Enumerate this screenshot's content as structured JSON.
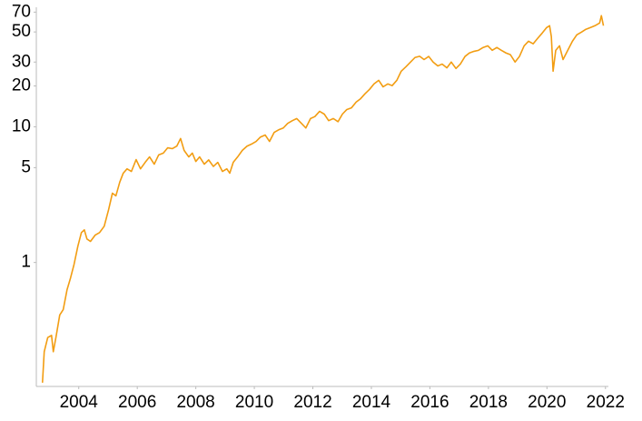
{
  "chart_data": {
    "type": "line",
    "log_scale_y": true,
    "grid": false,
    "xlim": [
      2002.55,
      2022.1
    ],
    "xticks": [
      2004,
      2006,
      2008,
      2010,
      2012,
      2014,
      2016,
      2018,
      2020,
      2022
    ],
    "ylim": [
      0.122,
      76
    ],
    "yticks": [
      1,
      5,
      10,
      20,
      30,
      50,
      70
    ],
    "series": [
      {
        "color": "#f29d12",
        "x": [
          2002.76,
          2002.82,
          2002.94,
          2003.07,
          2003.13,
          2003.22,
          2003.35,
          2003.47,
          2003.6,
          2003.72,
          2003.84,
          2003.97,
          2004.09,
          2004.19,
          2004.28,
          2004.4,
          2004.56,
          2004.71,
          2004.87,
          2005.02,
          2005.15,
          2005.27,
          2005.4,
          2005.52,
          2005.65,
          2005.8,
          2005.96,
          2006.11,
          2006.27,
          2006.42,
          2006.58,
          2006.73,
          2006.89,
          2007.04,
          2007.2,
          2007.35,
          2007.48,
          2007.6,
          2007.76,
          2007.88,
          2008.0,
          2008.13,
          2008.29,
          2008.44,
          2008.6,
          2008.75,
          2008.91,
          2009.06,
          2009.16,
          2009.28,
          2009.43,
          2009.59,
          2009.75,
          2009.9,
          2010.06,
          2010.21,
          2010.37,
          2010.52,
          2010.68,
          2010.83,
          2010.99,
          2011.14,
          2011.3,
          2011.45,
          2011.61,
          2011.76,
          2011.92,
          2012.07,
          2012.23,
          2012.39,
          2012.54,
          2012.7,
          2012.86,
          2013.01,
          2013.16,
          2013.32,
          2013.48,
          2013.63,
          2013.78,
          2013.94,
          2014.09,
          2014.25,
          2014.4,
          2014.56,
          2014.71,
          2014.87,
          2015.02,
          2015.18,
          2015.34,
          2015.49,
          2015.65,
          2015.8,
          2015.96,
          2016.11,
          2016.27,
          2016.42,
          2016.58,
          2016.73,
          2016.89,
          2017.04,
          2017.2,
          2017.35,
          2017.51,
          2017.66,
          2017.82,
          2017.98,
          2018.13,
          2018.29,
          2018.44,
          2018.6,
          2018.75,
          2018.91,
          2019.06,
          2019.22,
          2019.37,
          2019.53,
          2019.68,
          2019.84,
          2019.99,
          2020.09,
          2020.15,
          2020.21,
          2020.3,
          2020.43,
          2020.55,
          2020.71,
          2020.87,
          2021.02,
          2021.18,
          2021.33,
          2021.49,
          2021.64,
          2021.8,
          2021.86,
          2021.93
        ],
        "values": [
          0.13,
          0.22,
          0.28,
          0.29,
          0.22,
          0.28,
          0.41,
          0.45,
          0.63,
          0.77,
          0.97,
          1.32,
          1.66,
          1.74,
          1.49,
          1.43,
          1.59,
          1.66,
          1.85,
          2.45,
          3.24,
          3.1,
          3.9,
          4.55,
          4.9,
          4.69,
          5.73,
          4.9,
          5.47,
          6.0,
          5.3,
          6.2,
          6.4,
          7.0,
          6.9,
          7.2,
          8.2,
          6.7,
          6.0,
          6.4,
          5.55,
          6.0,
          5.3,
          5.7,
          5.1,
          5.47,
          4.69,
          4.9,
          4.55,
          5.47,
          6.0,
          6.7,
          7.2,
          7.45,
          7.8,
          8.4,
          8.7,
          7.8,
          9.1,
          9.5,
          9.8,
          10.6,
          11.1,
          11.5,
          10.6,
          9.8,
          11.5,
          11.9,
          13.0,
          12.4,
          11.1,
          11.5,
          10.9,
          12.4,
          13.4,
          13.8,
          15.2,
          16.1,
          17.5,
          18.9,
          20.7,
          22.0,
          19.7,
          20.7,
          20.1,
          22.0,
          25.7,
          27.7,
          30.0,
          32.4,
          33.1,
          31.3,
          33.0,
          30.0,
          28.1,
          29.0,
          27.2,
          30.0,
          26.9,
          29.0,
          33.0,
          35.0,
          36.0,
          36.6,
          38.4,
          39.5,
          36.6,
          38.4,
          36.6,
          35.0,
          34.0,
          30.0,
          33.0,
          39.5,
          42.7,
          40.9,
          44.8,
          49.1,
          53.9,
          55.6,
          46.2,
          25.7,
          36.6,
          39.5,
          31.3,
          36.6,
          42.7,
          47.6,
          49.9,
          52.3,
          53.9,
          55.6,
          58.2,
          65.9,
          55.6
        ]
      }
    ]
  }
}
